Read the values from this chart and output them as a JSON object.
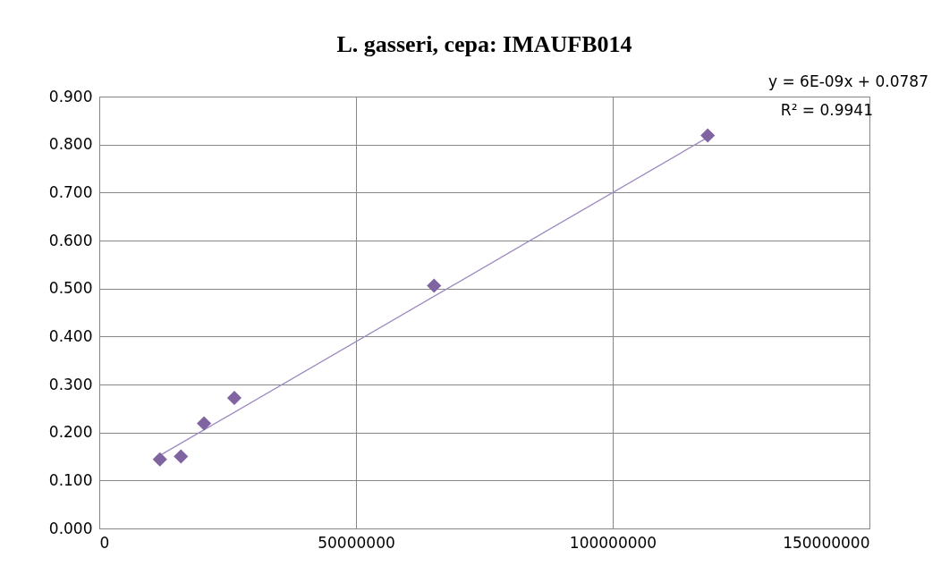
{
  "chart_data": {
    "type": "scatter",
    "title": "L. gasseri, cepa: IMAUFB014",
    "series": [
      {
        "color": "#8064a2",
        "marker": "diamond",
        "x": [
          11800000,
          15900000,
          20400000,
          26300000,
          65200000,
          118500000
        ],
        "values": [
          0.144,
          0.15,
          0.219,
          0.272,
          0.506,
          0.819
        ]
      },
      {
        "type": "line",
        "color": "#9e88c0",
        "marker": "none",
        "line_style": "solid",
        "x": [
          11800000,
          118500000
        ],
        "values": [
          0.152,
          0.815
        ]
      }
    ],
    "xlim": [
      0,
      150000000
    ],
    "xticks": [
      0,
      50000000,
      100000000,
      150000000
    ],
    "ylim": [
      0,
      0.9
    ],
    "yticks": [
      {
        "value": 0,
        "label": "0.000"
      },
      {
        "value": 0.1,
        "label": "0.100"
      },
      {
        "value": 0.2,
        "label": "0.200"
      },
      {
        "value": 0.3,
        "label": "0.300"
      },
      {
        "value": 0.4,
        "label": "0.400"
      },
      {
        "value": 0.5,
        "label": "0.500"
      },
      {
        "value": 0.6,
        "label": "0.600"
      },
      {
        "value": 0.7,
        "label": "0.700"
      },
      {
        "value": 0.8,
        "label": "0.800"
      },
      {
        "value": 0.9,
        "label": "0.900"
      }
    ],
    "grid": true,
    "annotations": [
      "y = 6E-09x + 0.0787",
      "R² = 0.9941"
    ]
  }
}
